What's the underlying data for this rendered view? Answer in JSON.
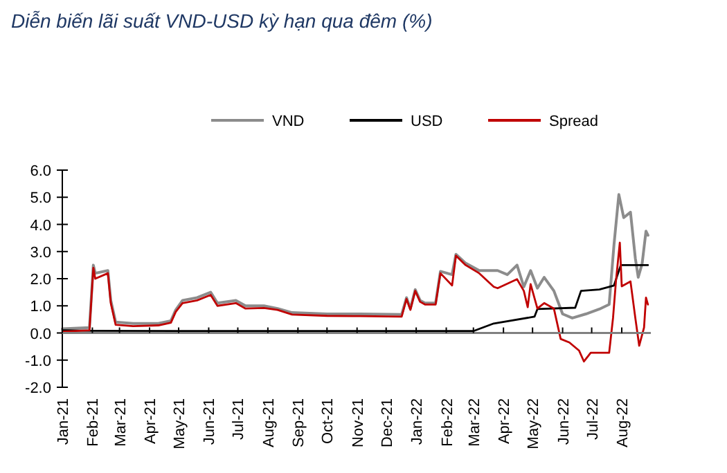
{
  "chart_data": {
    "type": "line",
    "title": "Diễn biến lãi suất VND-USD kỳ hạn qua đêm (%)",
    "legend": "top",
    "xlim": [
      "2021-01-01",
      "2022-08-31"
    ],
    "xticks": [
      {
        "value": "2021-01-01",
        "label": "Jan-21"
      },
      {
        "value": "2021-02-01",
        "label": "Feb-21"
      },
      {
        "value": "2021-03-01",
        "label": "Mar-21"
      },
      {
        "value": "2021-04-01",
        "label": "Apr-21"
      },
      {
        "value": "2021-05-01",
        "label": "May-21"
      },
      {
        "value": "2021-06-01",
        "label": "Jun-21"
      },
      {
        "value": "2021-07-01",
        "label": "Jul-21"
      },
      {
        "value": "2021-08-01",
        "label": "Aug-21"
      },
      {
        "value": "2021-09-01",
        "label": "Sep-21"
      },
      {
        "value": "2021-10-01",
        "label": "Oct-21"
      },
      {
        "value": "2021-11-01",
        "label": "Nov-21"
      },
      {
        "value": "2021-12-01",
        "label": "Dec-21"
      },
      {
        "value": "2022-01-01",
        "label": "Jan-22"
      },
      {
        "value": "2022-02-01",
        "label": "Feb-22"
      },
      {
        "value": "2022-03-01",
        "label": "Mar-22"
      },
      {
        "value": "2022-04-01",
        "label": "Apr-22"
      },
      {
        "value": "2022-05-01",
        "label": "May-22"
      },
      {
        "value": "2022-06-01",
        "label": "Jun-22"
      },
      {
        "value": "2022-07-01",
        "label": "Jul-22"
      },
      {
        "value": "2022-08-01",
        "label": "Aug-22"
      }
    ],
    "ylim": [
      -2,
      6
    ],
    "yticks": [
      {
        "value": -2,
        "label": "-2.0"
      },
      {
        "value": -1,
        "label": "-1.0"
      },
      {
        "value": 0,
        "label": "0.0"
      },
      {
        "value": 1,
        "label": "1.0"
      },
      {
        "value": 2,
        "label": "2.0"
      },
      {
        "value": 3,
        "label": "3.0"
      },
      {
        "value": 4,
        "label": "4.0"
      },
      {
        "value": 5,
        "label": "5.0"
      },
      {
        "value": 6,
        "label": "6.0"
      }
    ],
    "series": [
      {
        "name": "VND",
        "color": "#8c8c8c",
        "x": [
          "2021-01-01",
          "2021-01-29",
          "2021-02-02",
          "2021-02-04",
          "2021-02-17",
          "2021-02-20",
          "2021-02-25",
          "2021-03-15",
          "2021-04-10",
          "2021-04-23",
          "2021-04-28",
          "2021-05-05",
          "2021-05-20",
          "2021-06-03",
          "2021-06-10",
          "2021-06-29",
          "2021-07-09",
          "2021-07-28",
          "2021-08-11",
          "2021-08-26",
          "2021-10-01",
          "2021-11-04",
          "2021-12-17",
          "2021-12-22",
          "2021-12-26",
          "2021-12-31",
          "2022-01-05",
          "2022-01-10",
          "2022-01-21",
          "2022-01-26",
          "2022-02-07",
          "2022-02-11",
          "2022-02-21",
          "2022-03-07",
          "2022-03-26",
          "2022-04-05",
          "2022-04-15",
          "2022-04-22",
          "2022-04-29",
          "2022-05-06",
          "2022-05-13",
          "2022-05-23",
          "2022-06-01",
          "2022-06-11",
          "2022-06-25",
          "2022-07-09",
          "2022-07-19",
          "2022-07-24",
          "2022-07-29",
          "2022-08-03",
          "2022-08-10",
          "2022-08-15",
          "2022-08-18",
          "2022-08-22",
          "2022-08-26",
          "2022-08-28"
        ],
        "values": [
          0.15,
          0.2,
          2.5,
          2.2,
          2.3,
          1.2,
          0.4,
          0.35,
          0.35,
          0.45,
          0.85,
          1.2,
          1.3,
          1.5,
          1.1,
          1.2,
          1.0,
          1.0,
          0.9,
          0.75,
          0.7,
          0.7,
          0.68,
          1.3,
          0.9,
          1.6,
          1.2,
          1.1,
          1.1,
          2.27,
          2.15,
          2.9,
          2.57,
          2.3,
          2.3,
          2.15,
          2.5,
          1.7,
          2.3,
          1.65,
          2.05,
          1.55,
          0.7,
          0.55,
          0.7,
          0.88,
          1.05,
          3.25,
          5.1,
          4.25,
          4.45,
          2.75,
          2.05,
          2.55,
          3.75,
          3.6
        ]
      },
      {
        "name": "USD",
        "color": "#000000",
        "x": [
          "2021-01-01",
          "2021-02-01",
          "2021-06-01",
          "2021-12-31",
          "2022-03-01",
          "2022-03-22",
          "2022-05-03",
          "2022-05-06",
          "2022-06-14",
          "2022-06-20",
          "2022-07-09",
          "2022-07-24",
          "2022-07-31",
          "2022-08-28"
        ],
        "values": [
          0.1,
          0.08,
          0.07,
          0.07,
          0.07,
          0.35,
          0.6,
          0.88,
          0.93,
          1.55,
          1.6,
          1.75,
          2.5,
          2.5
        ]
      },
      {
        "name": "Spread",
        "color": "#c00000",
        "x": [
          "2021-01-01",
          "2021-01-29",
          "2021-02-02",
          "2021-02-04",
          "2021-02-17",
          "2021-02-20",
          "2021-02-25",
          "2021-03-15",
          "2021-04-10",
          "2021-04-23",
          "2021-04-28",
          "2021-05-05",
          "2021-05-20",
          "2021-06-03",
          "2021-06-10",
          "2021-06-29",
          "2021-07-09",
          "2021-07-28",
          "2021-08-11",
          "2021-08-26",
          "2021-10-01",
          "2021-11-04",
          "2021-12-17",
          "2021-12-22",
          "2021-12-26",
          "2021-12-31",
          "2022-01-05",
          "2022-01-10",
          "2022-01-21",
          "2022-01-26",
          "2022-02-07",
          "2022-02-11",
          "2022-02-21",
          "2022-03-07",
          "2022-03-22",
          "2022-03-26",
          "2022-04-15",
          "2022-04-22",
          "2022-04-26",
          "2022-04-29",
          "2022-05-06",
          "2022-05-13",
          "2022-05-23",
          "2022-05-30",
          "2022-06-08",
          "2022-06-18",
          "2022-06-23",
          "2022-06-30",
          "2022-07-19",
          "2022-07-23",
          "2022-07-26",
          "2022-07-30",
          "2022-08-01",
          "2022-08-10",
          "2022-08-15",
          "2022-08-19",
          "2022-08-24",
          "2022-08-26",
          "2022-08-28"
        ],
        "values": [
          0.05,
          0.1,
          2.4,
          2.0,
          2.2,
          1.1,
          0.3,
          0.25,
          0.28,
          0.38,
          0.78,
          1.1,
          1.2,
          1.4,
          1.0,
          1.1,
          0.9,
          0.92,
          0.85,
          0.68,
          0.63,
          0.62,
          0.6,
          1.25,
          0.85,
          1.55,
          1.15,
          1.05,
          1.05,
          2.2,
          1.75,
          2.85,
          2.5,
          2.2,
          1.7,
          1.65,
          1.98,
          1.55,
          0.95,
          1.8,
          0.9,
          1.1,
          0.9,
          -0.22,
          -0.35,
          -0.65,
          -1.05,
          -0.73,
          -0.73,
          0.55,
          1.9,
          3.33,
          1.72,
          1.9,
          0.55,
          -0.47,
          0.2,
          1.3,
          1.05
        ]
      }
    ]
  }
}
